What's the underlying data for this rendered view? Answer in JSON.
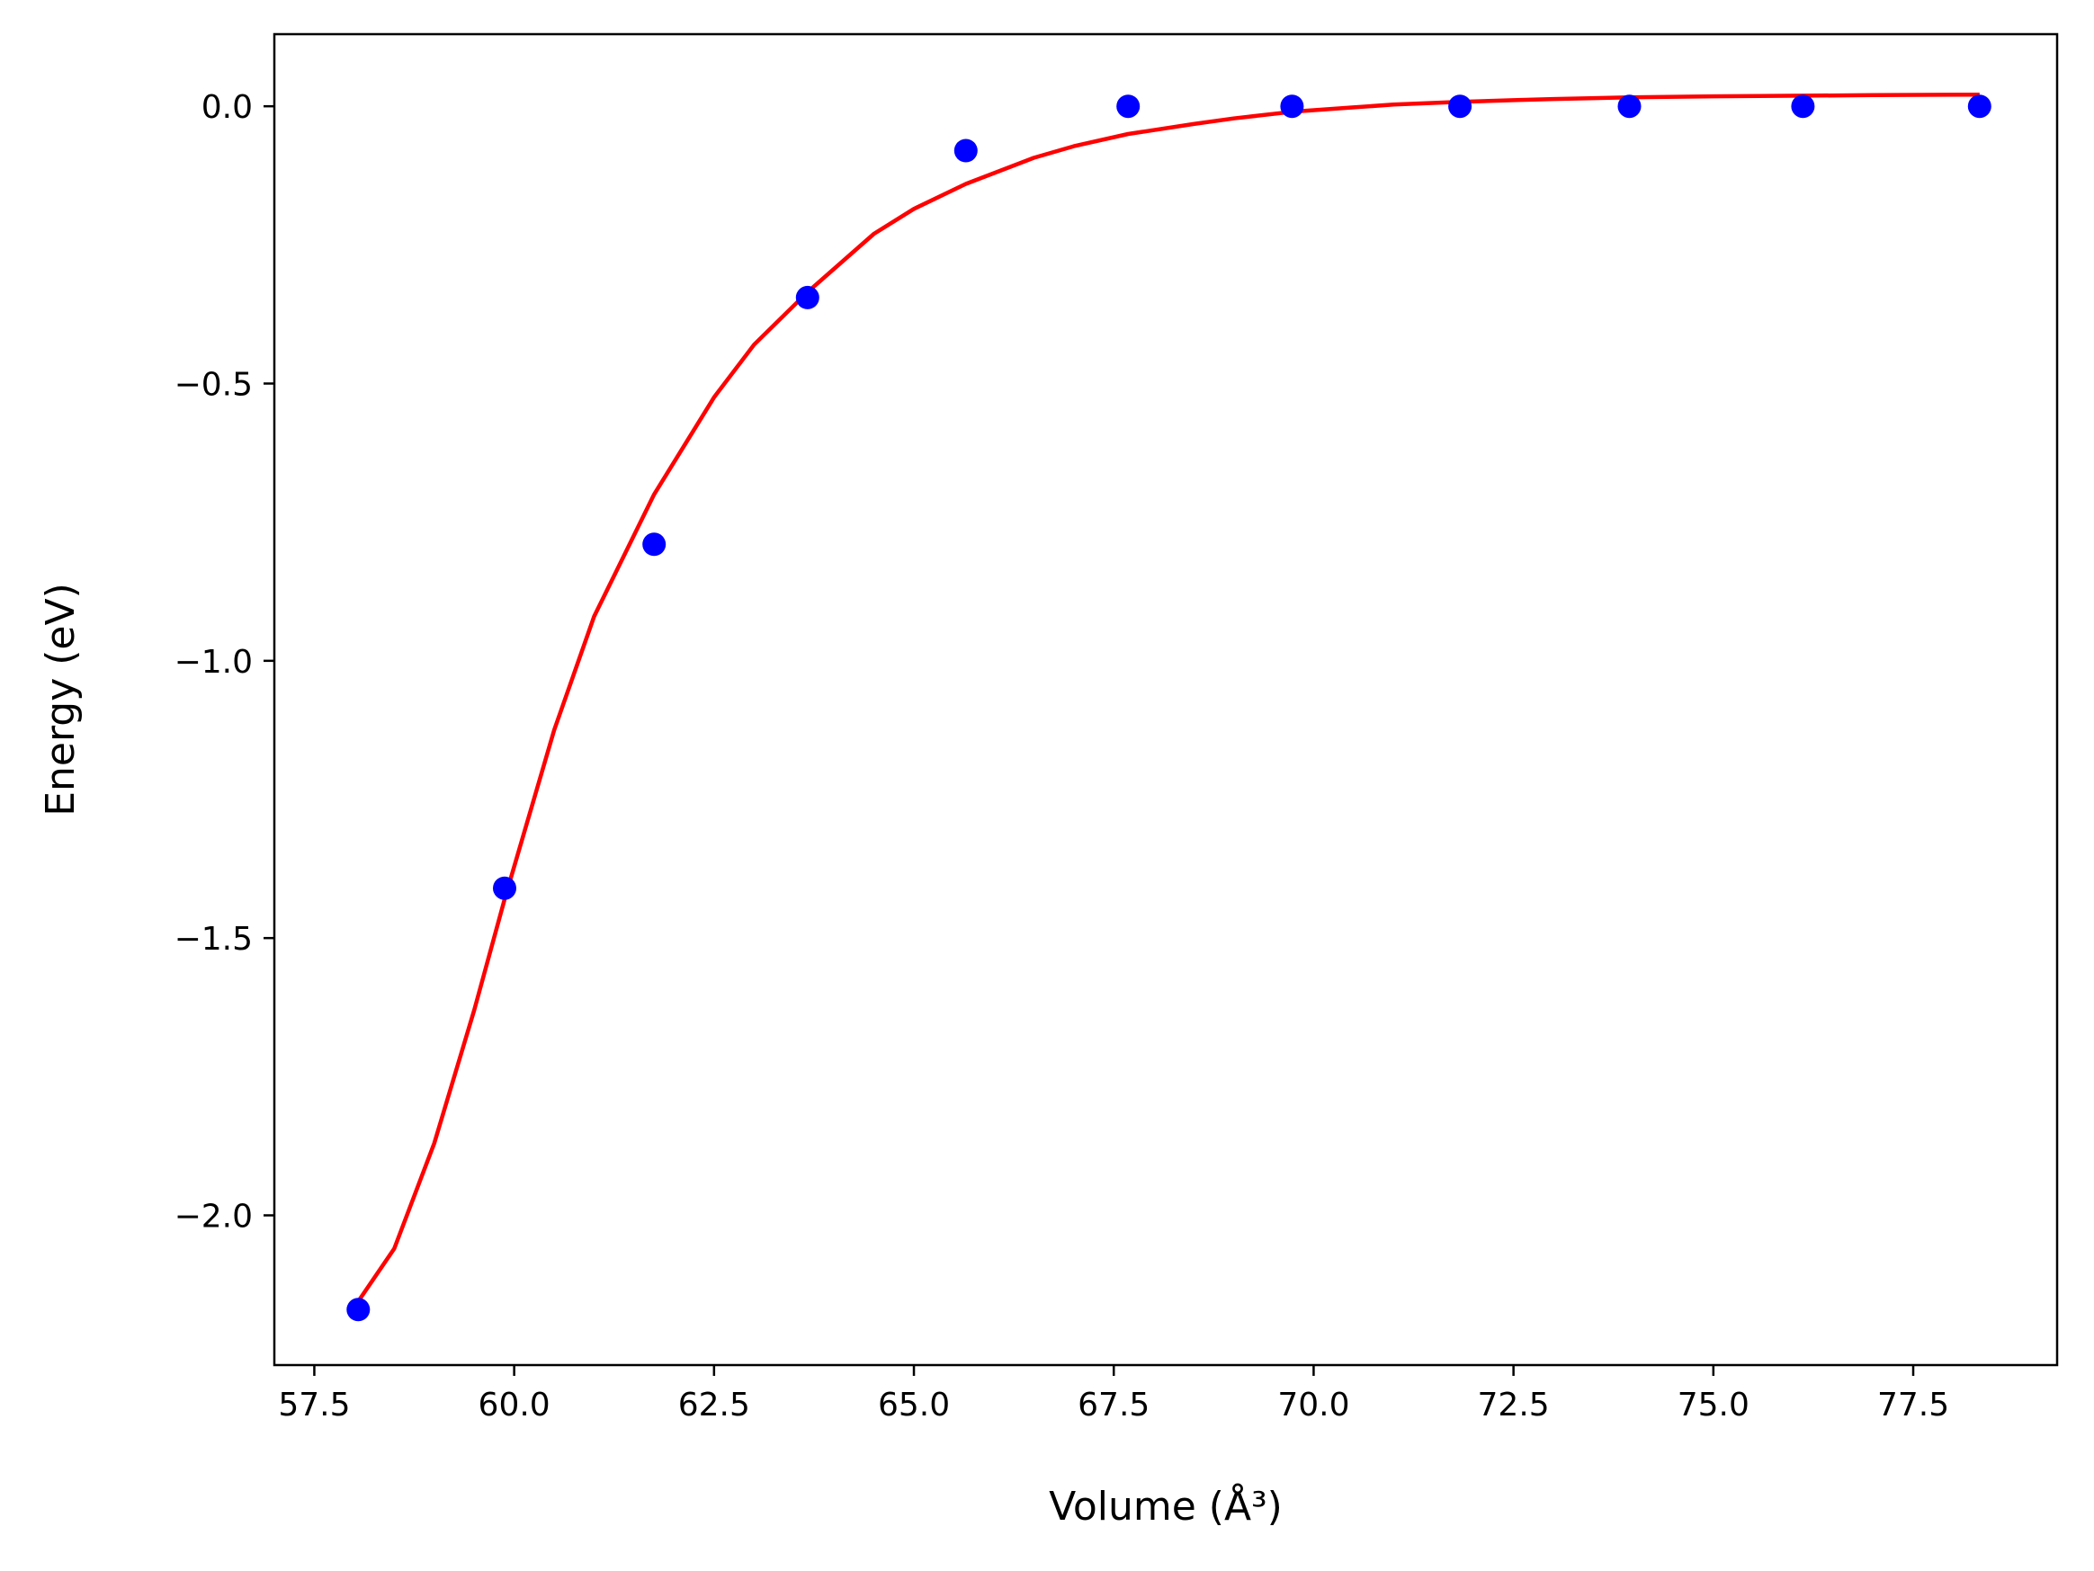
{
  "chart_data": {
    "type": "scatter",
    "title": "",
    "xlabel": "Volume (Å³)",
    "ylabel": "Energy (eV)",
    "xlim": [
      57.0,
      79.3
    ],
    "ylim": [
      -2.27,
      0.13
    ],
    "grid": false,
    "x_ticks": [
      57.5,
      60.0,
      62.5,
      65.0,
      67.5,
      70.0,
      72.5,
      75.0,
      77.5
    ],
    "x_tick_labels": [
      "57.5",
      "60.0",
      "62.5",
      "65.0",
      "67.5",
      "70.0",
      "72.5",
      "75.0",
      "77.5"
    ],
    "y_ticks": [
      0.0,
      -0.5,
      -1.0,
      -1.5,
      -2.0
    ],
    "y_tick_labels": [
      "0.0",
      "−0.5",
      "−1.0",
      "−1.5",
      "−2.0"
    ],
    "series": [
      {
        "kind": "scatter",
        "color": "#0000ff",
        "x": [
          58.05,
          59.88,
          61.75,
          63.67,
          65.65,
          67.68,
          69.73,
          71.83,
          73.95,
          76.12,
          78.33
        ],
        "y": [
          -2.17,
          -1.41,
          -0.79,
          -0.345,
          -0.08,
          0.0,
          0.0,
          0.0,
          0.0,
          0.0,
          0.0
        ]
      },
      {
        "kind": "line",
        "color": "#ff0000",
        "x": [
          58.05,
          58.5,
          59.0,
          59.5,
          59.88,
          60.5,
          61.0,
          61.75,
          62.5,
          63.0,
          63.67,
          64.5,
          65.0,
          65.65,
          66.5,
          67.0,
          67.68,
          68.5,
          69.0,
          69.73,
          70.5,
          71.0,
          71.83,
          72.5,
          73.0,
          73.95,
          75.0,
          76.12,
          77.0,
          78.33
        ],
        "y": [
          -2.155,
          -2.06,
          -1.87,
          -1.63,
          -1.43,
          -1.125,
          -0.92,
          -0.7,
          -0.525,
          -0.43,
          -0.335,
          -0.23,
          -0.185,
          -0.14,
          -0.093,
          -0.072,
          -0.05,
          -0.032,
          -0.022,
          -0.01,
          -0.002,
          0.003,
          0.008,
          0.011,
          0.013,
          0.016,
          0.018,
          0.019,
          0.02,
          0.021
        ]
      }
    ]
  }
}
